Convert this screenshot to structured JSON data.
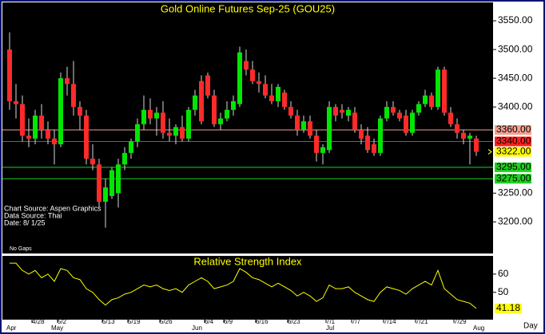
{
  "chart_data": [
    {
      "type": "candlestick",
      "title": "Gold Online Futures Sep-25 (GOU25)",
      "categories": [
        null,
        null,
        null,
        null,
        "4/28",
        null,
        null,
        null,
        "5/2",
        null,
        null,
        null,
        null,
        null,
        null,
        "5/13",
        null,
        null,
        null,
        "5/19",
        null,
        null,
        null,
        null,
        "5/26",
        null,
        null,
        null,
        null,
        null,
        null,
        "6/4",
        null,
        null,
        "6/9",
        null,
        null,
        null,
        null,
        "6/16",
        null,
        null,
        null,
        null,
        "6/23",
        null,
        null,
        null,
        null,
        null,
        "7/1",
        null,
        null,
        null,
        "7/7",
        null,
        null,
        null,
        null,
        "7/14",
        null,
        null,
        null,
        null,
        "7/21",
        null,
        null,
        null,
        null,
        null,
        "7/29",
        null,
        null,
        null
      ],
      "months": [
        "Apr",
        null,
        null,
        null,
        null,
        null,
        null,
        "May",
        null,
        null,
        null,
        null,
        null,
        null,
        null,
        null,
        null,
        null,
        null,
        null,
        null,
        null,
        null,
        null,
        null,
        null,
        null,
        null,
        null,
        "Jun",
        null,
        null,
        null,
        null,
        null,
        null,
        null,
        null,
        null,
        null,
        null,
        null,
        null,
        null,
        null,
        null,
        null,
        null,
        null,
        null,
        "Jul",
        null,
        null,
        null,
        null,
        null,
        null,
        null,
        null,
        null,
        null,
        null,
        null,
        null,
        null,
        null,
        null,
        null,
        null,
        null,
        null,
        null,
        null,
        "Aug"
      ],
      "x_unit_label": "Day",
      "open": [
        3500,
        3410,
        3405,
        3350,
        3345,
        3385,
        3360,
        3345,
        3335,
        3450,
        3440,
        3400,
        3385,
        3310,
        3300,
        3235,
        3245,
        3250,
        3300,
        3320,
        3340,
        3370,
        3395,
        3380,
        3390,
        3355,
        3350,
        3365,
        3345,
        3395,
        3445,
        3455,
        3420,
        3370,
        3380,
        3395,
        3405,
        3480,
        3465,
        3445,
        3440,
        3420,
        3410,
        3425,
        3400,
        3385,
        3360,
        3375,
        3350,
        3320,
        3325,
        3400,
        3395,
        3385,
        3390,
        3360,
        3350,
        3335,
        3320,
        3380,
        3400,
        3390,
        3385,
        3355,
        3390,
        3405,
        3420,
        3400,
        3465,
        3390,
        3370,
        3355,
        3345,
        3345
      ],
      "high": [
        3530,
        3440,
        3420,
        3380,
        3395,
        3405,
        3375,
        3360,
        3460,
        3470,
        3480,
        3410,
        3395,
        3335,
        3310,
        3275,
        3295,
        3310,
        3330,
        3345,
        3380,
        3420,
        3415,
        3400,
        3410,
        3380,
        3370,
        3385,
        3400,
        3430,
        3455,
        3460,
        3430,
        3390,
        3410,
        3420,
        3505,
        3500,
        3480,
        3460,
        3455,
        3440,
        3440,
        3430,
        3410,
        3395,
        3385,
        3385,
        3360,
        3335,
        3410,
        3405,
        3405,
        3400,
        3400,
        3370,
        3365,
        3345,
        3385,
        3410,
        3410,
        3395,
        3395,
        3395,
        3410,
        3430,
        3425,
        3470,
        3470,
        3400,
        3380,
        3360,
        3355,
        3350
      ],
      "low": [
        3395,
        3380,
        3340,
        3330,
        3335,
        3345,
        3335,
        3300,
        3330,
        3420,
        3385,
        3360,
        3300,
        3290,
        3225,
        3190,
        3240,
        3225,
        3290,
        3310,
        3330,
        3360,
        3370,
        3350,
        3345,
        3340,
        3335,
        3340,
        3340,
        3385,
        3370,
        3415,
        3365,
        3360,
        3375,
        3385,
        3400,
        3455,
        3440,
        3425,
        3415,
        3405,
        3400,
        3395,
        3380,
        3350,
        3355,
        3345,
        3305,
        3300,
        3320,
        3375,
        3380,
        3375,
        3355,
        3335,
        3320,
        3315,
        3315,
        3375,
        3385,
        3375,
        3350,
        3350,
        3385,
        3400,
        3395,
        3395,
        3385,
        3365,
        3345,
        3335,
        3300,
        3315
      ],
      "close": [
        3410,
        3405,
        3350,
        3345,
        3385,
        3360,
        3345,
        3335,
        3450,
        3440,
        3400,
        3385,
        3310,
        3300,
        3235,
        3260,
        3290,
        3300,
        3320,
        3340,
        3370,
        3395,
        3380,
        3390,
        3355,
        3350,
        3365,
        3345,
        3395,
        3420,
        3375,
        3420,
        3370,
        3380,
        3395,
        3410,
        3495,
        3465,
        3445,
        3440,
        3420,
        3410,
        3435,
        3400,
        3385,
        3360,
        3375,
        3350,
        3320,
        3330,
        3400,
        3385,
        3390,
        3395,
        3360,
        3345,
        3325,
        3320,
        3380,
        3400,
        3390,
        3380,
        3355,
        3390,
        3405,
        3420,
        3400,
        3465,
        3390,
        3370,
        3355,
        3345,
        3350,
        3322
      ],
      "up_color": "#00e600",
      "down_color": "#ff2a2a",
      "ylim": [
        3145,
        3582
      ],
      "yticks": [
        {
          "value": 3550,
          "label": "3550.00"
        },
        {
          "value": 3500,
          "label": "3500.00"
        },
        {
          "value": 3450,
          "label": "3450.00"
        },
        {
          "value": 3400,
          "label": "3400.00"
        },
        {
          "value": 3250,
          "label": "3250.00"
        },
        {
          "value": 3200,
          "label": "3200.00"
        }
      ],
      "levels": [
        {
          "value": 3360,
          "label": "3360.00",
          "color": "#f4a090"
        },
        {
          "value": 3340,
          "label": "3340.00",
          "color": "#ff2020"
        },
        {
          "value": 3295,
          "label": "3295.00",
          "color": "#20d020"
        },
        {
          "value": 3275,
          "label": "3275.00",
          "color": "#20d020"
        }
      ],
      "last_price": {
        "value": 3322,
        "label": "3322.00",
        "color": "#ffff00"
      },
      "notes": [
        "Chart Source: Aspen Graphics",
        "Data Source: Thai",
        "Date:   8/ 1/25"
      ],
      "gap_note": "No Gaps"
    },
    {
      "type": "line",
      "title": "Relative Strength Index",
      "values": [
        66,
        66,
        62,
        60,
        62,
        58,
        60,
        56,
        63,
        62,
        58,
        57,
        52,
        50,
        46,
        43,
        46,
        47,
        49,
        50,
        52,
        54,
        53,
        54,
        52,
        51,
        52,
        50,
        54,
        56,
        58,
        56,
        52,
        53,
        54,
        56,
        63,
        61,
        58,
        57,
        55,
        53,
        55,
        53,
        51,
        48,
        50,
        48,
        45,
        47,
        54,
        52,
        52,
        53,
        50,
        48,
        46,
        45,
        50,
        53,
        52,
        51,
        49,
        52,
        54,
        56,
        54,
        62,
        52,
        49,
        46,
        45,
        44,
        41.18
      ],
      "color": "#ffff00",
      "ylim": [
        35,
        70
      ],
      "yticks": [
        60,
        50
      ]
    }
  ]
}
